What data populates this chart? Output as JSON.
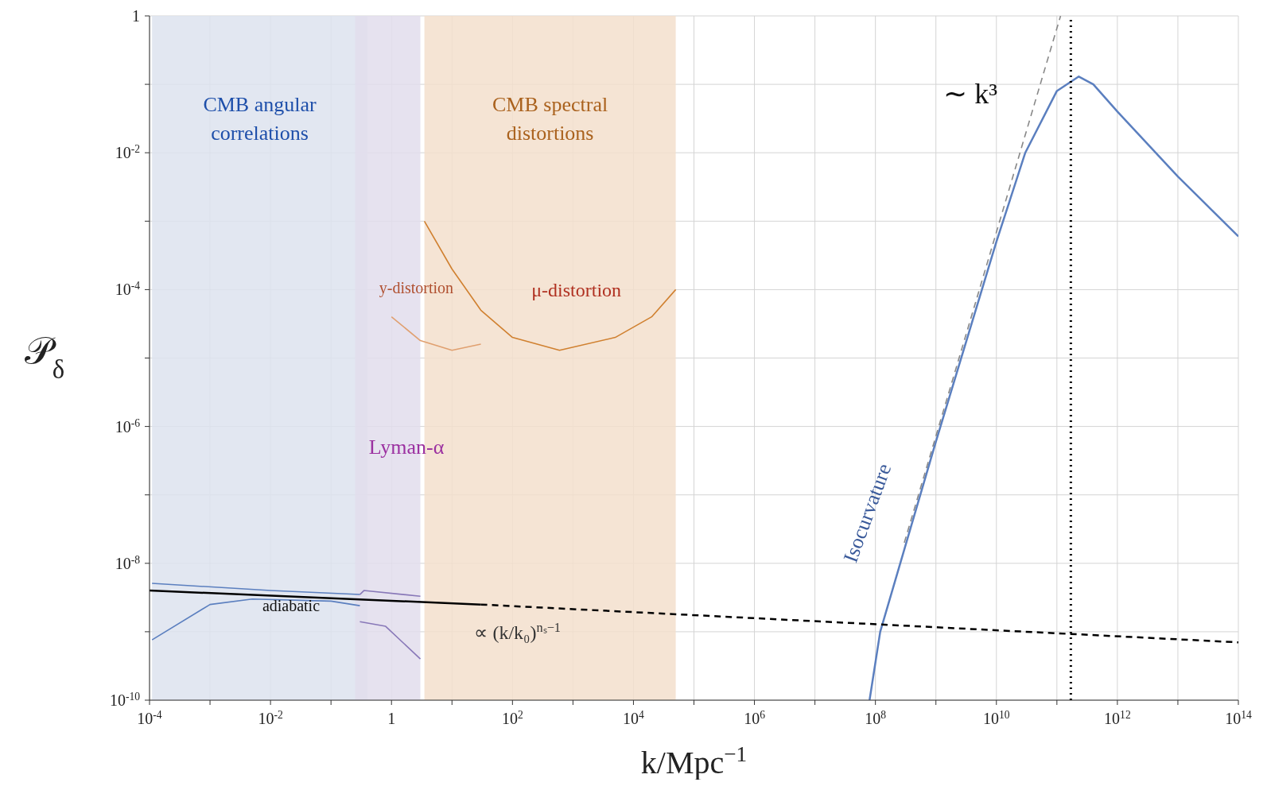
{
  "chart_data": {
    "type": "line",
    "xlabel": "k/Mpc$^{−1}$",
    "ylabel": "𝒫$_{δ}$",
    "log": "xy",
    "grid": true,
    "xlim": [
      0.0001,
      100000000000000
    ],
    "xticks": [
      {
        "value": 0.0001,
        "label": "10$^{-4}$"
      },
      {
        "value": 0.001,
        "label": null
      },
      {
        "value": 0.01,
        "label": "10$^{-2}$"
      },
      {
        "value": 0.1,
        "label": null
      },
      1,
      {
        "value": 10,
        "label": null
      },
      {
        "value": 100,
        "label": "10$^{2}$"
      },
      {
        "value": 1000,
        "label": null
      },
      {
        "value": 10000,
        "label": "10$^{4}$"
      },
      {
        "value": 100000,
        "label": null
      },
      {
        "value": 1000000,
        "label": "10$^{6}$"
      },
      {
        "value": 10000000,
        "label": null
      },
      {
        "value": 100000000,
        "label": "10$^{8}$"
      },
      {
        "value": 1000000000,
        "label": null
      },
      {
        "value": 10000000000,
        "label": "10$^{10}$"
      },
      {
        "value": 100000000000,
        "label": null
      },
      {
        "value": 1000000000000,
        "label": "10$^{12}$"
      },
      {
        "value": 10000000000000,
        "label": null
      },
      {
        "value": 100000000000000,
        "label": "10$^{14}$"
      }
    ],
    "ylim": [
      1e-10,
      1
    ],
    "yticks": [
      {
        "value": 1e-10,
        "label": "10$^{-10}$"
      },
      {
        "value": 1e-09,
        "label": null
      },
      {
        "value": 1e-08,
        "label": "10$^{-8}$"
      },
      {
        "value": 1e-07,
        "label": null
      },
      {
        "value": 1e-06,
        "label": "10$^{-6}$"
      },
      {
        "value": 1e-05,
        "label": null
      },
      {
        "value": 0.0001,
        "label": "10$^{-4}$"
      },
      {
        "value": 0.001,
        "label": null
      },
      {
        "value": 0.01,
        "label": "10$^{-2}$"
      },
      {
        "value": 0.1,
        "label": null
      },
      1
    ],
    "series": [
      {
        "name": "Isocurvature",
        "color": "#5b7fbf",
        "x": [
          80000000,
          120000000,
          1000000000,
          10000000000,
          30000000000,
          100000000000,
          230000000000,
          400000000000,
          1000000000000,
          10000000000000,
          100000000000000
        ],
        "values": [
          1e-10,
          1e-09,
          6e-07,
          0.0005,
          0.01,
          0.08,
          0.13,
          0.1,
          0.04,
          0.0045,
          0.0006
        ]
      },
      {
        "color": "#888888",
        "line_style": "dashed",
        "x": [
          300000000,
          115000000000
        ],
        "values": [
          2e-08,
          1
        ]
      },
      {
        "name": "adiabatic",
        "color": "#000000",
        "x": [
          0.0001,
          30
        ],
        "values": [
          4e-09,
          2.5e-09
        ]
      },
      {
        "color": "#000000",
        "line_style": "dashed",
        "x": [
          30,
          100000000000000
        ],
        "values": [
          2.5e-09,
          7e-10
        ]
      },
      {
        "color": "#5b7fbf",
        "x": [
          0.00011,
          0.01,
          0.3
        ],
        "values": [
          5.1e-09,
          4e-09,
          3.5e-09
        ]
      },
      {
        "color": "#5b7fbf",
        "x": [
          0.00011,
          0.001,
          0.005,
          0.1,
          0.3
        ],
        "values": [
          7.6e-10,
          2.5e-09,
          3e-09,
          2.8e-09,
          2.4e-09
        ]
      },
      {
        "color": "#8878b8",
        "x": [
          0.3,
          0.35,
          3
        ],
        "values": [
          3.5e-09,
          4e-09,
          3.3e-09
        ]
      },
      {
        "color": "#8878b8",
        "x": [
          0.3,
          0.8,
          3
        ],
        "values": [
          1.4e-09,
          1.2e-09,
          4e-10
        ]
      },
      {
        "color": "#e0a070",
        "x": [
          1,
          3,
          10,
          30
        ],
        "values": [
          4e-05,
          1.8e-05,
          1.3e-05,
          1.6e-05
        ]
      },
      {
        "color": "#000000",
        "line_style": "dotted",
        "x": [
          170000000000,
          170000000000
        ],
        "values": [
          1e-10,
          1
        ]
      },
      {
        "color": "#d08030",
        "x": [
          3.5,
          10,
          30,
          100,
          600,
          5000,
          20000,
          50000
        ],
        "values": [
          0.001,
          0.0002,
          5e-05,
          2e-05,
          1.3e-05,
          2e-05,
          4e-05,
          0.0001
        ]
      }
    ],
    "bands": [
      {
        "axis": "x",
        "from": 0.00011,
        "to": 0.4,
        "label": "CMB angular correlations",
        "color": "#dde3ee"
      },
      {
        "axis": "x",
        "from": 0.25,
        "to": 3,
        "color": "#e2ddec"
      },
      {
        "axis": "x",
        "from": 3.5,
        "to": 50000,
        "label": "CMB spectral distortions",
        "color": "#f3dfcc"
      }
    ],
    "annotations": [
      "∼ k³",
      "∝ (k/k₀)$^{nₛ−1}$",
      "y-distortion",
      "μ-distortion",
      "Lyman-α"
    ]
  }
}
